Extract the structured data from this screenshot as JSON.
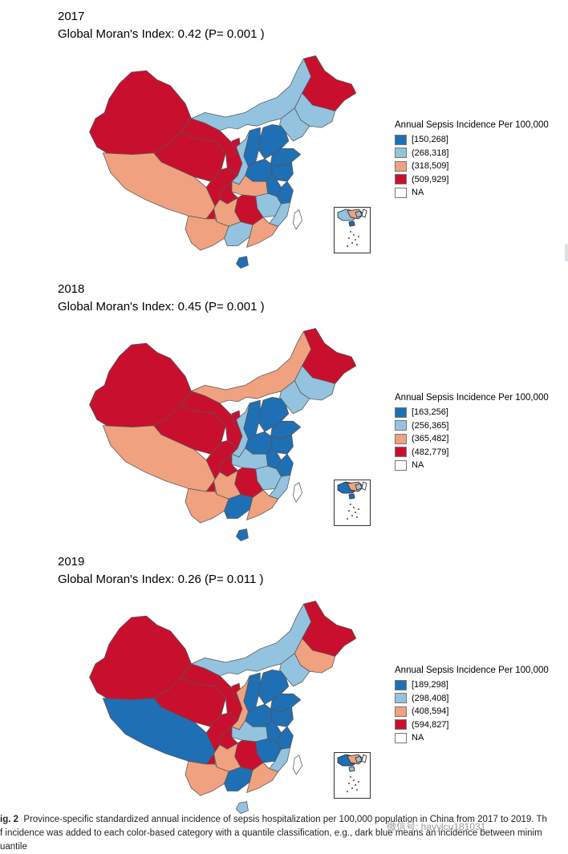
{
  "colors": {
    "dark_blue": "#1f6fb5",
    "light_blue": "#93c3df",
    "light_salmon": "#f0a17f",
    "dark_red": "#c8102e",
    "na": "#ffffff",
    "border": "#555555"
  },
  "legend_title": "Annual Sepsis Incidence Per 100,000",
  "na_label": "NA",
  "panels": [
    {
      "year": "2017",
      "moran": "Global Moran's Index: 0.42  (P= 0.001 )",
      "legend": [
        "[150,268]",
        "(268,318]",
        "(318,509]",
        "(509,929]"
      ],
      "regions": {
        "xinjiang": "dark_red",
        "tibet": "light_salmon",
        "qinghai": "dark_red",
        "gansu": "dark_red",
        "inner_mongolia": "light_blue",
        "heilongjiang": "dark_red",
        "jilin": "light_blue",
        "liaoning": "light_blue",
        "sichuan": "dark_red",
        "yunnan": "light_salmon",
        "guizhou": "light_salmon",
        "chongqing": "dark_red",
        "guangxi": "light_blue",
        "guangdong": "light_salmon",
        "fujian": "light_blue",
        "jiangxi": "light_blue",
        "hunan": "dark_red",
        "hubei": "light_salmon",
        "shaanxi": "light_blue",
        "ningxia": "dark_red",
        "shanxi": "dark_blue",
        "hebei": "dark_blue",
        "beijing": "dark_red",
        "henan": "dark_blue",
        "shandong": "dark_blue",
        "jiangsu": "dark_blue",
        "anhui": "dark_blue",
        "zhejiang": "dark_blue",
        "hainan": "dark_blue",
        "taiwan": "na"
      }
    },
    {
      "year": "2018",
      "moran": "Global Moran's Index: 0.45  (P= 0.001 )",
      "legend": [
        "[163,256]",
        "(256,365]",
        "(365,482]",
        "(482,779]"
      ],
      "regions": {
        "xinjiang": "dark_red",
        "tibet": "light_salmon",
        "qinghai": "dark_red",
        "gansu": "dark_red",
        "inner_mongolia": "light_salmon",
        "heilongjiang": "dark_red",
        "jilin": "light_blue",
        "liaoning": "light_blue",
        "sichuan": "dark_red",
        "yunnan": "light_salmon",
        "guizhou": "light_salmon",
        "chongqing": "dark_red",
        "guangxi": "dark_blue",
        "guangdong": "light_salmon",
        "fujian": "light_blue",
        "jiangxi": "light_blue",
        "hunan": "dark_red",
        "hubei": "light_blue",
        "shaanxi": "light_blue",
        "ningxia": "dark_red",
        "shanxi": "dark_blue",
        "hebei": "dark_blue",
        "beijing": "dark_red",
        "henan": "dark_blue",
        "shandong": "dark_blue",
        "jiangsu": "dark_blue",
        "anhui": "dark_blue",
        "zhejiang": "dark_blue",
        "hainan": "dark_blue",
        "taiwan": "na"
      }
    },
    {
      "year": "2019",
      "moran": "Global Moran's Index: 0.26  (P= 0.011 )",
      "legend": [
        "[189,298]",
        "(298,408]",
        "(408,594]",
        "(594,827]"
      ],
      "regions": {
        "xinjiang": "dark_red",
        "tibet": "dark_blue",
        "qinghai": "dark_red",
        "gansu": "dark_red",
        "inner_mongolia": "light_blue",
        "heilongjiang": "dark_red",
        "jilin": "light_salmon",
        "liaoning": "light_blue",
        "sichuan": "dark_red",
        "yunnan": "light_salmon",
        "guizhou": "light_salmon",
        "chongqing": "dark_red",
        "guangxi": "dark_blue",
        "guangdong": "light_salmon",
        "fujian": "light_blue",
        "jiangxi": "dark_blue",
        "hunan": "dark_red",
        "hubei": "light_blue",
        "shaanxi": "light_salmon",
        "ningxia": "dark_red",
        "shanxi": "dark_blue",
        "hebei": "dark_blue",
        "beijing": "dark_red",
        "henan": "dark_blue",
        "shandong": "dark_blue",
        "jiangsu": "dark_blue",
        "anhui": "dark_blue",
        "zhejiang": "dark_blue",
        "hainan": "light_blue",
        "taiwan": "na"
      }
    }
  ],
  "caption": {
    "fig_label": "ig. 2",
    "line1": "Province-specific standardized annual incidence of sepsis hospitalization per 100,000 population in China from 2017 to 2019. Th",
    "line2": "f incidence was added to each color-based category with a quantile classification, e.g., dark blue means an incidence between minim",
    "line3": "uantile"
  },
  "watermark": "微信号: hayylcu181031"
}
